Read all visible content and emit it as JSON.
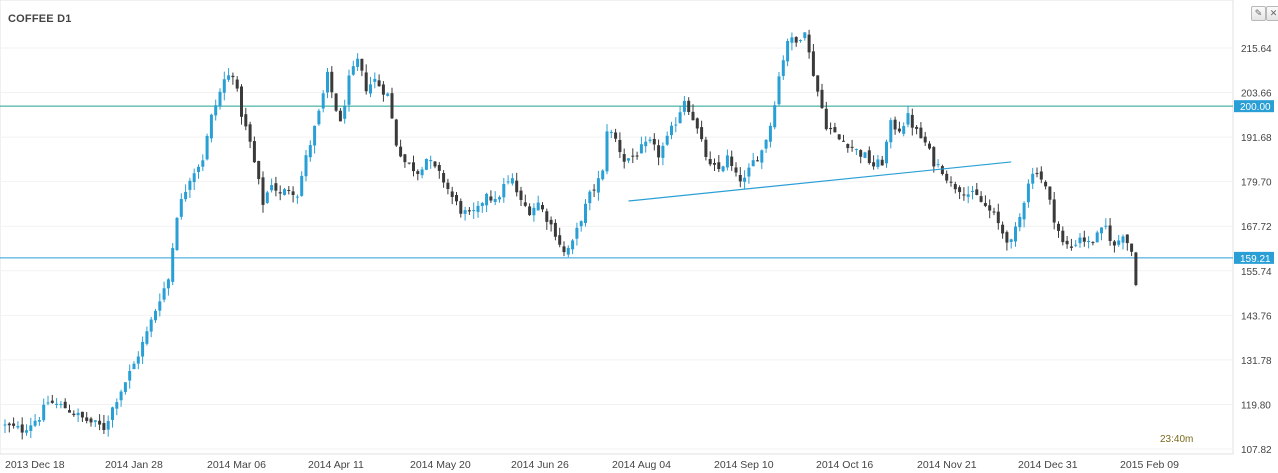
{
  "symbol": "COFFEE D1",
  "countdown": "23:40m",
  "toolbar": {
    "edit_icon": "pencil-icon",
    "close_icon": "close-icon"
  },
  "colors": {
    "bull": "#2a9fd6",
    "bear": "#3a3a3a",
    "hline": "#20a090",
    "support": "#2a9fd6",
    "trend": "#2a9fd6",
    "badge": "#2a9fd6"
  },
  "chart_data": {
    "type": "candlestick",
    "title": "COFFEE D1",
    "ylim": [
      104.0,
      225.0
    ],
    "y_ticks": [
      "215.64",
      "203.66",
      "191.68",
      "179.70",
      "167.72",
      "155.74",
      "143.76",
      "131.78",
      "119.80",
      "107.82"
    ],
    "x_ticks": [
      "2013 Dec 18",
      "2014 Jan 28",
      "2014 Mar 06",
      "2014 Apr 11",
      "2014 May 20",
      "2014 Jun 26",
      "2014 Aug 04",
      "2014 Sep 10",
      "2014 Oct 16",
      "2014 Nov 21",
      "2014 Dec 31",
      "2015 Feb 09"
    ],
    "horizontal_levels": [
      {
        "label": "200.00",
        "value": 200.0
      },
      {
        "label": "159.21",
        "value": 159.21
      }
    ],
    "trendline": {
      "from": [
        "2014 Jul 23",
        174.5
      ],
      "to": [
        "2014 Dec 18",
        185.0
      ]
    },
    "waypoints": [
      [
        0,
        114.0
      ],
      [
        4,
        113.0
      ],
      [
        8,
        116.5
      ],
      [
        10,
        120.5
      ],
      [
        14,
        119.0
      ],
      [
        18,
        116.0
      ],
      [
        23,
        113.5
      ],
      [
        26,
        121.5
      ],
      [
        30,
        130.5
      ],
      [
        33,
        139.0
      ],
      [
        36,
        148.5
      ],
      [
        38,
        153.5
      ],
      [
        40,
        171.0
      ],
      [
        43,
        181.0
      ],
      [
        46,
        186.0
      ],
      [
        48,
        197.0
      ],
      [
        51,
        207.0
      ],
      [
        53,
        209.0
      ],
      [
        55,
        198.0
      ],
      [
        57,
        190.0
      ],
      [
        60,
        174.0
      ],
      [
        62,
        179.5
      ],
      [
        64,
        176.0
      ],
      [
        66,
        178.0
      ],
      [
        68,
        176.5
      ],
      [
        70,
        186.0
      ],
      [
        73,
        198.0
      ],
      [
        75,
        208.0
      ],
      [
        78,
        195.0
      ],
      [
        80,
        207.0
      ],
      [
        82,
        212.0
      ],
      [
        84,
        205.0
      ],
      [
        86,
        207.0
      ],
      [
        89,
        203.0
      ],
      [
        91,
        190.0
      ],
      [
        93,
        185.0
      ],
      [
        96,
        182.5
      ],
      [
        98,
        186.0
      ],
      [
        100,
        183.0
      ],
      [
        102,
        180.0
      ],
      [
        104,
        175.5
      ],
      [
        106,
        172.0
      ],
      [
        108,
        170.5
      ],
      [
        110,
        172.0
      ],
      [
        112,
        177.0
      ],
      [
        114,
        174.0
      ],
      [
        116,
        178.5
      ],
      [
        118,
        180.0
      ],
      [
        120,
        174.0
      ],
      [
        122,
        172.0
      ],
      [
        124,
        174.0
      ],
      [
        126,
        170.0
      ],
      [
        128,
        166.0
      ],
      [
        130,
        160.5
      ],
      [
        132,
        163.0
      ],
      [
        134,
        170.0
      ],
      [
        136,
        176.0
      ],
      [
        139,
        182.0
      ],
      [
        140,
        194.0
      ],
      [
        142,
        191.0
      ],
      [
        144,
        185.5
      ],
      [
        146,
        186.5
      ],
      [
        148,
        188.5
      ],
      [
        150,
        190.0
      ],
      [
        152,
        187.0
      ],
      [
        154,
        191.0
      ],
      [
        156,
        196.0
      ],
      [
        158,
        202.0
      ],
      [
        160,
        197.0
      ],
      [
        162,
        190.0
      ],
      [
        164,
        183.5
      ],
      [
        166,
        183.0
      ],
      [
        168,
        186.0
      ],
      [
        170,
        181.0
      ],
      [
        172,
        180.0
      ],
      [
        174,
        185.0
      ],
      [
        176,
        188.0
      ],
      [
        178,
        195.0
      ],
      [
        180,
        208.0
      ],
      [
        182,
        218.0
      ],
      [
        184,
        217.0
      ],
      [
        186,
        221.0
      ],
      [
        187,
        214.0
      ],
      [
        189,
        204.0
      ],
      [
        191,
        195.0
      ],
      [
        194,
        191.0
      ],
      [
        196,
        190.0
      ],
      [
        198,
        188.0
      ],
      [
        200,
        186.5
      ],
      [
        202,
        184.0
      ],
      [
        204,
        185.0
      ],
      [
        206,
        195.0
      ],
      [
        208,
        194.0
      ],
      [
        210,
        197.0
      ],
      [
        212,
        193.0
      ],
      [
        214,
        190.0
      ],
      [
        216,
        185.0
      ],
      [
        218,
        183.0
      ],
      [
        220,
        179.0
      ],
      [
        222,
        178.0
      ],
      [
        224,
        176.5
      ],
      [
        226,
        175.5
      ],
      [
        228,
        173.0
      ],
      [
        230,
        170.5
      ],
      [
        232,
        166.0
      ],
      [
        234,
        163.0
      ],
      [
        236,
        170.0
      ],
      [
        238,
        180.0
      ],
      [
        240,
        183.0
      ],
      [
        242,
        178.0
      ],
      [
        244,
        170.0
      ],
      [
        246,
        163.0
      ],
      [
        248,
        162.0
      ],
      [
        250,
        165.0
      ],
      [
        252,
        163.0
      ],
      [
        254,
        165.0
      ],
      [
        256,
        167.5
      ],
      [
        258,
        162.0
      ],
      [
        260,
        166.0
      ],
      [
        262,
        161.0
      ],
      [
        263,
        153.0
      ]
    ]
  }
}
